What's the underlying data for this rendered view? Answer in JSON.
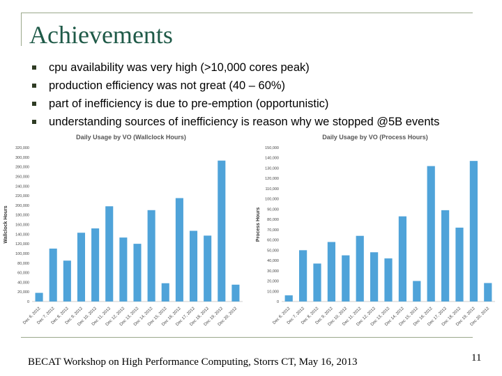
{
  "slide": {
    "title": "Achievements",
    "bullets": [
      "cpu availability was very high (>10,000 cores peak)",
      "production efficiency was not great (40 – 60%)",
      "part of inefficiency is due to pre-emption (opportunistic)",
      "understanding sources of inefficiency is reason why we stopped @5B events"
    ],
    "footer": "BECAT Workshop on High Performance Computing, Storrs CT, May 16, 2013",
    "page_number": "11",
    "bullet_color": "#2f3c24",
    "title_color": "#1f5a48"
  },
  "chart_data": [
    {
      "type": "bar",
      "title": "Daily Usage by VO (Wallclock Hours)",
      "ylabel": "Wallclock Hours",
      "xlabel": "",
      "categories": [
        "Dec 6, 2012",
        "Dec 7, 2012",
        "Dec 8, 2012",
        "Dec 9, 2012",
        "Dec 10, 2012",
        "Dec 11, 2012",
        "Dec 12, 2012",
        "Dec 13, 2012",
        "Dec 14, 2012",
        "Dec 15, 2012",
        "Dec 16, 2012",
        "Dec 17, 2012",
        "Dec 18, 2012",
        "Dec 19, 2012",
        "Dec 20, 2012"
      ],
      "values": [
        18000,
        110000,
        85000,
        143000,
        152000,
        198000,
        133000,
        120000,
        190000,
        38000,
        215000,
        147000,
        137000,
        293000,
        35000
      ],
      "yticks": [
        "0",
        "20,000",
        "40,000",
        "60,000",
        "80,000",
        "100,000",
        "120,000",
        "140,000",
        "160,000",
        "180,000",
        "200,000",
        "220,000",
        "240,000",
        "260,000",
        "280,000",
        "300,000",
        "320,000"
      ],
      "ylim": [
        0,
        320000
      ],
      "color": "#4fa3d9",
      "grid": false
    },
    {
      "type": "bar",
      "title": "Daily Usage by VO (Process Hours)",
      "ylabel": "Process Hours",
      "xlabel": "",
      "categories": [
        "Dec 6, 2012",
        "Dec 7, 2012",
        "Dec 8, 2012",
        "Dec 9, 2012",
        "Dec 10, 2012",
        "Dec 11, 2012",
        "Dec 12, 2012",
        "Dec 13, 2012",
        "Dec 14, 2012",
        "Dec 15, 2012",
        "Dec 16, 2012",
        "Dec 17, 2012",
        "Dec 18, 2012",
        "Dec 19, 2012",
        "Dec 20, 2012"
      ],
      "values": [
        6000,
        50000,
        37000,
        58000,
        45000,
        64000,
        48000,
        42000,
        83000,
        20000,
        132000,
        89000,
        72000,
        137000,
        18000
      ],
      "yticks": [
        "0",
        "10,000",
        "20,000",
        "30,000",
        "40,000",
        "50,000",
        "60,000",
        "70,000",
        "80,000",
        "90,000",
        "100,000",
        "110,000",
        "120,000",
        "130,000",
        "140,000",
        "150,000"
      ],
      "ylim": [
        0,
        150000
      ],
      "color": "#4fa3d9",
      "grid": false
    }
  ]
}
